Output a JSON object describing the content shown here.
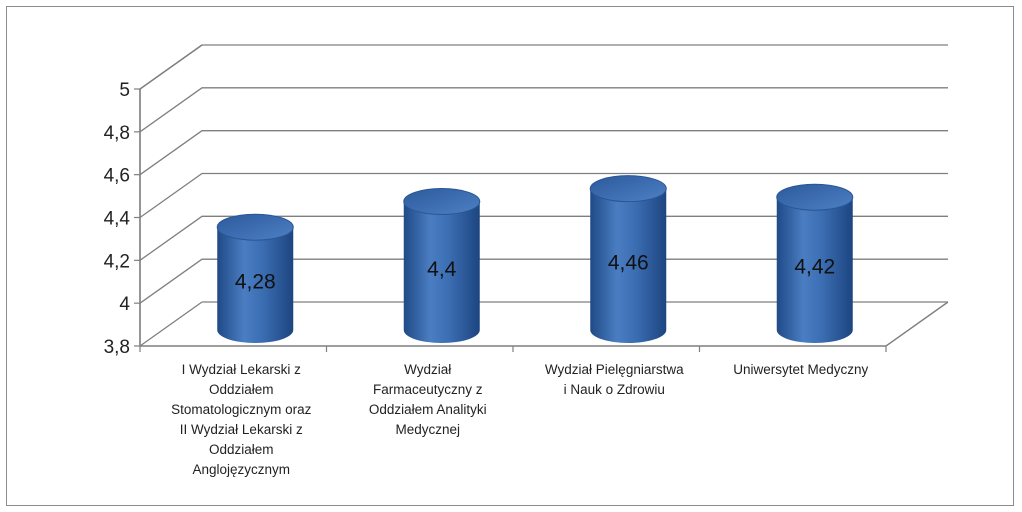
{
  "chart_data": {
    "type": "bar",
    "style": "3d-cylinder",
    "title": "",
    "xlabel": "",
    "ylabel": "",
    "ylim": [
      3.8,
      5
    ],
    "yticks": [
      "3,8",
      "4",
      "4,2",
      "4,4",
      "4,6",
      "4,8",
      "5"
    ],
    "grid": true,
    "legend": "none",
    "bar_color": "#3d6fb3",
    "categories": [
      [
        "I Wydział Lekarski z",
        "Oddziałem",
        "Stomatologicznym oraz",
        "II Wydział Lekarski z",
        "Oddziałem",
        "Anglojęzycznym"
      ],
      [
        "Wydział",
        "Farmaceutyczny z",
        "Oddziałem Analityki",
        "Medycznej"
      ],
      [
        "Wydział Pielęgniarstwa",
        "i Nauk o Zdrowiu"
      ],
      [
        "Uniwersytet Medyczny"
      ]
    ],
    "values": [
      4.28,
      4.4,
      4.46,
      4.42
    ],
    "data_labels": [
      "4,28",
      "4,4",
      "4,46",
      "4,42"
    ]
  }
}
